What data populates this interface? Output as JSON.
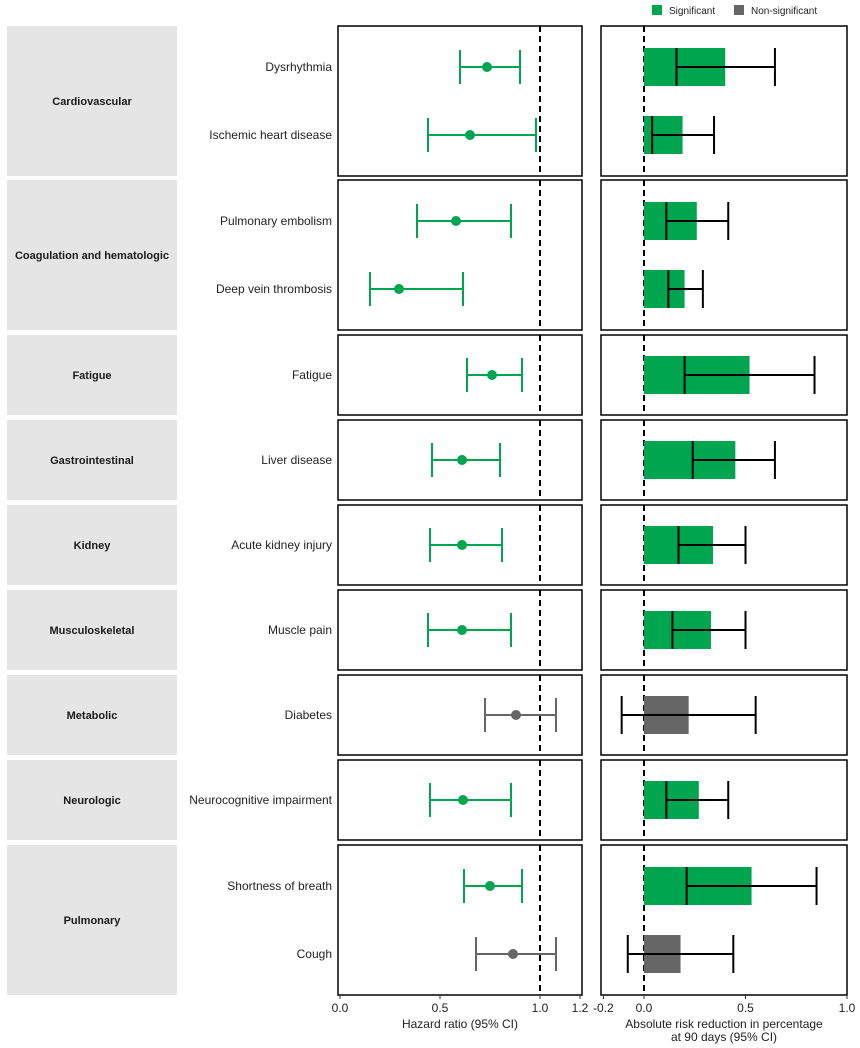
{
  "chart_data": {
    "type": "forest",
    "colors": {
      "significant": "#00a550",
      "non_significant": "#666666",
      "strip": "#e5e5e5"
    },
    "legend": {
      "position": "top-right",
      "entries": [
        {
          "label": "Significant",
          "color": "#00a550"
        },
        {
          "label": "Non-significant",
          "color": "#666666"
        }
      ]
    },
    "left_panel": {
      "xlabel": "Hazard ratio (95% CI)",
      "xlim": [
        0,
        1.2
      ],
      "ticks": [
        "0.0",
        "0.5",
        "1.0",
        "1.2"
      ],
      "tick_values": [
        0,
        0.5,
        1.0,
        1.2
      ],
      "reference_line": 1.0
    },
    "right_panel": {
      "xlabel": [
        "Absolute risk reduction in percentage",
        "at 90 days (95% CI)"
      ],
      "xlim": [
        -0.2,
        1.0
      ],
      "ticks": [
        "-0.2",
        "0.0",
        "0.5",
        "1.0"
      ],
      "tick_values": [
        -0.2,
        0,
        0.5,
        1.0
      ],
      "reference_line": 0
    },
    "groups": [
      {
        "name": "Cardiovascular",
        "outcomes": [
          {
            "label": "Dysrhythmia",
            "significant": true,
            "hr": 0.735,
            "hr_lo": 0.6,
            "hr_hi": 0.9,
            "arr": 0.4,
            "arr_lo": 0.16,
            "arr_hi": 0.645
          },
          {
            "label": "Ischemic heart disease",
            "significant": true,
            "hr": 0.65,
            "hr_lo": 0.44,
            "hr_hi": 0.98,
            "arr": 0.19,
            "arr_lo": 0.04,
            "arr_hi": 0.345
          }
        ]
      },
      {
        "name": "Coagulation and hematologic",
        "outcomes": [
          {
            "label": "Pulmonary embolism",
            "significant": true,
            "hr": 0.58,
            "hr_lo": 0.385,
            "hr_hi": 0.855,
            "arr": 0.26,
            "arr_lo": 0.11,
            "arr_hi": 0.415
          },
          {
            "label": "Deep vein thrombosis",
            "significant": true,
            "hr": 0.295,
            "hr_lo": 0.15,
            "hr_hi": 0.615,
            "arr": 0.2,
            "arr_lo": 0.12,
            "arr_hi": 0.29
          }
        ]
      },
      {
        "name": "Fatigue",
        "outcomes": [
          {
            "label": "Fatigue",
            "significant": true,
            "hr": 0.76,
            "hr_lo": 0.635,
            "hr_hi": 0.91,
            "arr": 0.52,
            "arr_lo": 0.2,
            "arr_hi": 0.84
          }
        ]
      },
      {
        "name": "Gastrointestinal",
        "outcomes": [
          {
            "label": "Liver disease",
            "significant": true,
            "hr": 0.61,
            "hr_lo": 0.46,
            "hr_hi": 0.8,
            "arr": 0.45,
            "arr_lo": 0.24,
            "arr_hi": 0.645
          }
        ]
      },
      {
        "name": "Kidney",
        "outcomes": [
          {
            "label": "Acute kidney injury",
            "significant": true,
            "hr": 0.61,
            "hr_lo": 0.45,
            "hr_hi": 0.81,
            "arr": 0.34,
            "arr_lo": 0.17,
            "arr_hi": 0.5
          }
        ]
      },
      {
        "name": "Musculoskeletal",
        "outcomes": [
          {
            "label": "Muscle pain",
            "significant": true,
            "hr": 0.61,
            "hr_lo": 0.44,
            "hr_hi": 0.855,
            "arr": 0.33,
            "arr_lo": 0.14,
            "arr_hi": 0.5
          }
        ]
      },
      {
        "name": "Metabolic",
        "outcomes": [
          {
            "label": "Diabetes",
            "significant": false,
            "hr": 0.88,
            "hr_lo": 0.725,
            "hr_hi": 1.08,
            "arr": 0.22,
            "arr_lo": -0.11,
            "arr_hi": 0.55
          }
        ]
      },
      {
        "name": "Neurologic",
        "outcomes": [
          {
            "label": "Neurocognitive impairment",
            "significant": true,
            "hr": 0.615,
            "hr_lo": 0.45,
            "hr_hi": 0.855,
            "arr": 0.27,
            "arr_lo": 0.11,
            "arr_hi": 0.415
          }
        ]
      },
      {
        "name": "Pulmonary",
        "outcomes": [
          {
            "label": "Shortness of breath",
            "significant": true,
            "hr": 0.75,
            "hr_lo": 0.62,
            "hr_hi": 0.91,
            "arr": 0.53,
            "arr_lo": 0.21,
            "arr_hi": 0.85
          },
          {
            "label": "Cough",
            "significant": false,
            "hr": 0.865,
            "hr_lo": 0.68,
            "hr_hi": 1.08,
            "arr": 0.18,
            "arr_lo": -0.08,
            "arr_hi": 0.44
          }
        ]
      }
    ]
  }
}
